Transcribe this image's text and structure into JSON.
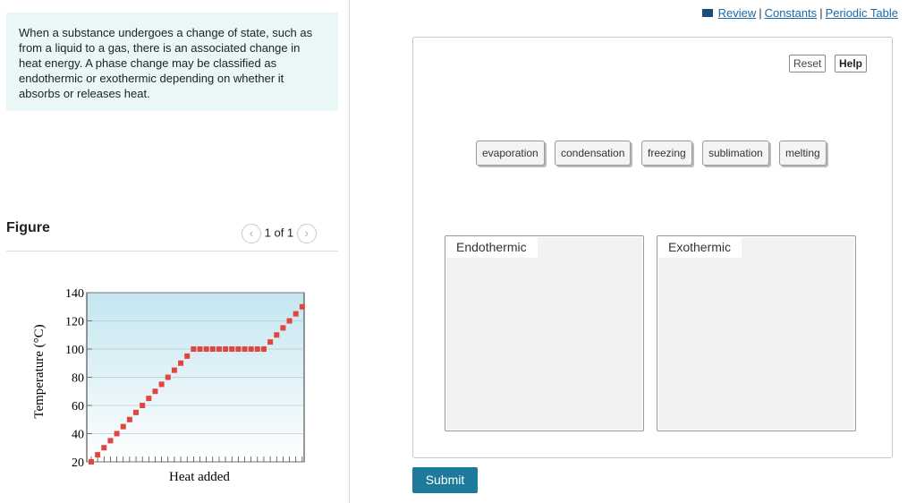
{
  "links": {
    "items": [
      "Review",
      "Constants",
      "Periodic Table"
    ],
    "separator": "|"
  },
  "intro": "When a substance undergoes a change of state, such as from a liquid to a gas, there is an associated change in heat energy. A phase change may be classified as endothermic or exothermic depending on whether it absorbs or releases heat.",
  "figure": {
    "title": "Figure",
    "pager": "1 of 1",
    "chart_data": {
      "type": "dot",
      "ylabel": "Temperature (°C)",
      "xlabel": "Heat added",
      "color": "#e2453f",
      "categories": [
        null,
        null,
        null,
        null,
        null,
        null,
        null,
        null,
        null,
        null,
        null,
        null,
        null,
        null,
        null,
        null,
        null,
        null,
        null,
        null,
        null,
        null,
        null,
        null,
        null,
        null,
        null,
        null,
        null,
        null,
        null,
        null,
        null,
        null
      ],
      "values": [
        20,
        25,
        30,
        35,
        40,
        45,
        50,
        55,
        60,
        65,
        70,
        75,
        80,
        85,
        90,
        95,
        100,
        100,
        100,
        100,
        100,
        100,
        100,
        100,
        100,
        100,
        100,
        100,
        105,
        110,
        115,
        120,
        125,
        130
      ],
      "ylim": [
        20,
        140
      ],
      "yticks": [
        20,
        40,
        60,
        80,
        100,
        120,
        140
      ],
      "grid": true
    }
  },
  "toolbar": [
    "Reset",
    "Help"
  ],
  "options": [
    "evaporation",
    "condensation",
    "freezing",
    "sublimation",
    "melting"
  ],
  "zones": [
    "Endothermic",
    "Exothermic"
  ],
  "submit": "Submit"
}
